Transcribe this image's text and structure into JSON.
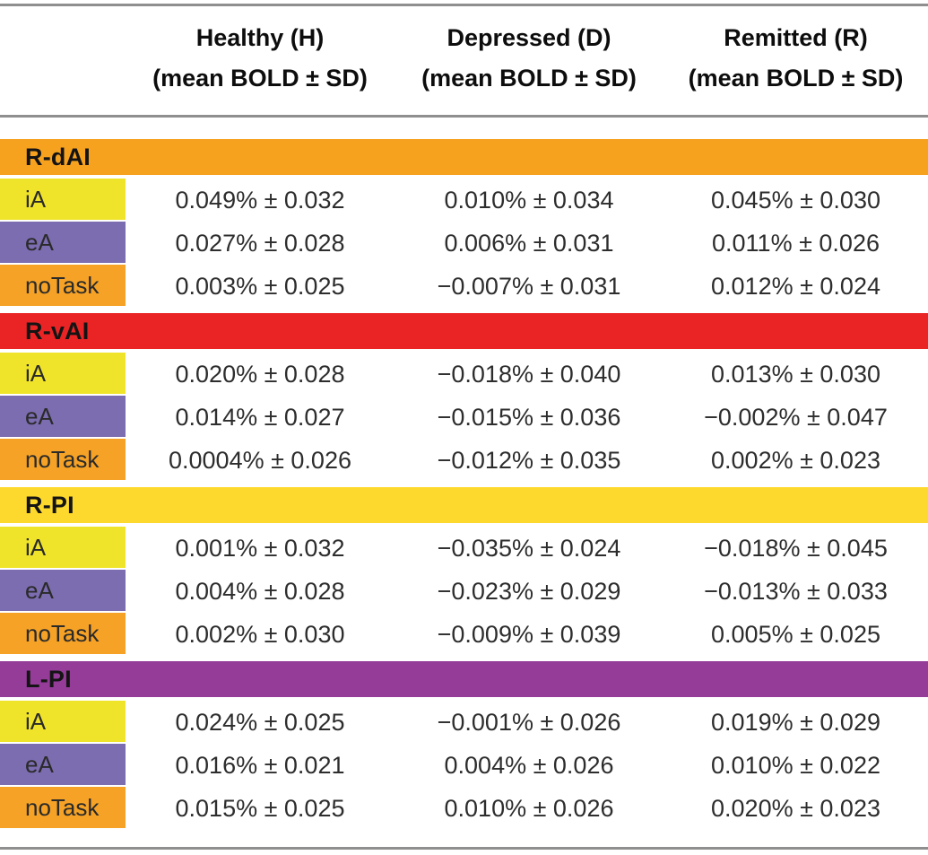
{
  "table": {
    "columns": [
      {
        "label": "Healthy (H)",
        "sub": "(mean BOLD ± SD)"
      },
      {
        "label": "Depressed (D)",
        "sub": "(mean BOLD ± SD)"
      },
      {
        "label": "Remitted (R)",
        "sub": "(mean BOLD ± SD)"
      }
    ],
    "condition_colors": {
      "iA": "#F0E42B",
      "eA": "#7C6CB0",
      "noTask": "#F5A226"
    },
    "rule_color": "#8f8f8f",
    "sections": [
      {
        "name": "R-dAI",
        "band_color": "#F7A21F",
        "rows": [
          {
            "label": "iA",
            "values": [
              "0.049% ± 0.032",
              "0.010% ± 0.034",
              "0.045% ± 0.030"
            ]
          },
          {
            "label": "eA",
            "values": [
              "0.027% ± 0.028",
              "0.006% ± 0.031",
              "0.011% ± 0.026"
            ]
          },
          {
            "label": "noTask",
            "values": [
              "0.003% ± 0.025",
              "−0.007% ± 0.031",
              "0.012% ± 0.024"
            ]
          }
        ]
      },
      {
        "name": "R-vAI",
        "band_color": "#EA2425",
        "rows": [
          {
            "label": "iA",
            "values": [
              "0.020% ± 0.028",
              "−0.018% ± 0.040",
              "0.013% ± 0.030"
            ]
          },
          {
            "label": "eA",
            "values": [
              "0.014% ± 0.027",
              "−0.015% ± 0.036",
              "−0.002% ± 0.047"
            ]
          },
          {
            "label": "noTask",
            "values": [
              "0.0004% ± 0.026",
              "−0.012% ± 0.035",
              "0.002% ± 0.023"
            ]
          }
        ]
      },
      {
        "name": "R-PI",
        "band_color": "#FDD92D",
        "rows": [
          {
            "label": "iA",
            "values": [
              "0.001% ± 0.032",
              "−0.035% ± 0.024",
              "−0.018% ± 0.045"
            ]
          },
          {
            "label": "eA",
            "values": [
              "0.004% ± 0.028",
              "−0.023% ± 0.029",
              "−0.013% ± 0.033"
            ]
          },
          {
            "label": "noTask",
            "values": [
              "0.002% ± 0.030",
              "−0.009% ± 0.039",
              "0.005% ± 0.025"
            ]
          }
        ]
      },
      {
        "name": "L-PI",
        "band_color": "#953C99",
        "rows": [
          {
            "label": "iA",
            "values": [
              "0.024% ± 0.025",
              "−0.001% ± 0.026",
              "0.019% ± 0.029"
            ]
          },
          {
            "label": "eA",
            "values": [
              "0.016% ± 0.021",
              "0.004% ± 0.026",
              "0.010% ± 0.022"
            ]
          },
          {
            "label": "noTask",
            "values": [
              "0.015% ± 0.025",
              "0.010% ± 0.026",
              "0.020% ± 0.023"
            ]
          }
        ]
      }
    ]
  }
}
